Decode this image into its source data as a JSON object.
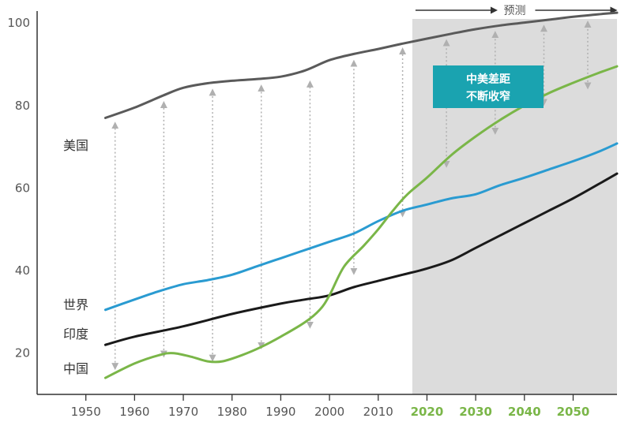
{
  "chart_data": {
    "type": "line",
    "xlim": [
      1940,
      2059
    ],
    "ylim": [
      10,
      105
    ],
    "y_ticks": [
      20,
      40,
      60,
      80,
      100
    ],
    "x_ticks_historical": [
      1950,
      1960,
      1970,
      1980,
      1990,
      2000,
      2010
    ],
    "x_ticks_forecast": [
      2020,
      2030,
      2040,
      2050
    ],
    "forecast_range": [
      2017,
      2059
    ],
    "forecast_label": "预测",
    "callout": [
      "中美差距",
      "不断收窄"
    ],
    "grid": false,
    "series": [
      {
        "name": "美国",
        "color": "#5a5a5a",
        "x": [
          1954,
          1960,
          1966,
          1970,
          1975,
          1980,
          1985,
          1990,
          1995,
          2000,
          2005,
          2010,
          2015,
          2020,
          2025,
          2030,
          2035,
          2040,
          2045,
          2050,
          2055,
          2059
        ],
        "values": [
          77,
          79.5,
          82.5,
          84.3,
          85.4,
          86,
          86.4,
          87,
          88.5,
          91,
          92.5,
          93.7,
          95,
          96.2,
          97.4,
          98.5,
          99.4,
          100.1,
          100.8,
          101.5,
          102.1,
          102.5
        ]
      },
      {
        "name": "世界",
        "color": "#2a9bd1",
        "x": [
          1954,
          1960,
          1965,
          1970,
          1975,
          1980,
          1985,
          1990,
          1995,
          2000,
          2005,
          2010,
          2015,
          2020,
          2025,
          2030,
          2035,
          2040,
          2045,
          2050,
          2055,
          2059
        ],
        "values": [
          30.5,
          33,
          35,
          36.7,
          37.7,
          39,
          41,
          43,
          45,
          47,
          49,
          52,
          54.5,
          56,
          57.5,
          58.5,
          60.7,
          62.5,
          64.5,
          66.5,
          68.7,
          70.8
        ]
      },
      {
        "name": "印度",
        "color": "#1a1a1a",
        "x": [
          1954,
          1960,
          1970,
          1980,
          1990,
          1995,
          2000,
          2005,
          2010,
          2015,
          2020,
          2025,
          2030,
          2035,
          2040,
          2045,
          2050,
          2055,
          2059
        ],
        "values": [
          22,
          24,
          26.5,
          29.5,
          32,
          33,
          34,
          36,
          37.5,
          39,
          40.5,
          42.5,
          45.5,
          48.5,
          51.5,
          54.5,
          57.5,
          60.8,
          63.5
        ]
      },
      {
        "name": "中国",
        "color": "#7ab648",
        "x": [
          1954,
          1960,
          1965,
          1968,
          1972,
          1975,
          1978,
          1982,
          1986,
          1990,
          1995,
          1998,
          2000,
          2003,
          2007,
          2010,
          2013,
          2016,
          2020,
          2025,
          2030,
          2035,
          2040,
          2045,
          2050,
          2055,
          2059
        ],
        "values": [
          14,
          17.5,
          19.5,
          20,
          19,
          18,
          18,
          19.5,
          21.5,
          24,
          27.5,
          30.5,
          34,
          41,
          46,
          50,
          54.5,
          58.5,
          62.5,
          68,
          72.5,
          76.5,
          80,
          83,
          85.5,
          87.8,
          89.5
        ]
      }
    ],
    "gap_arrows": [
      {
        "x": 1956,
        "from": 16,
        "to": 76
      },
      {
        "x": 1966,
        "from": 19,
        "to": 81
      },
      {
        "x": 1976,
        "from": 18,
        "to": 84
      },
      {
        "x": 1986,
        "from": 21,
        "to": 85
      },
      {
        "x": 1996,
        "from": 26,
        "to": 86
      },
      {
        "x": 2005,
        "from": 39,
        "to": 91
      },
      {
        "x": 2015,
        "from": 53,
        "to": 94
      },
      {
        "x": 2024,
        "from": 65,
        "to": 96
      },
      {
        "x": 2034,
        "from": 73,
        "to": 98
      },
      {
        "x": 2044,
        "from": 80,
        "to": 99.5
      },
      {
        "x": 2053,
        "from": 84,
        "to": 100.5
      }
    ]
  }
}
